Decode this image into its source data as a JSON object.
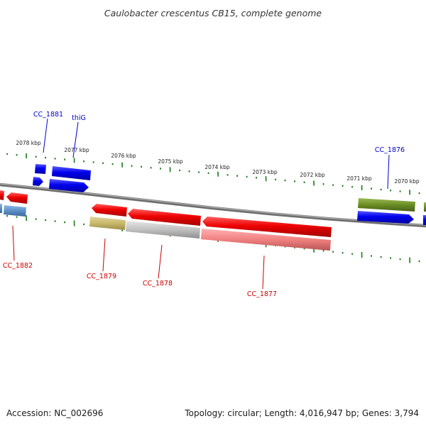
{
  "title": "Caulobacter crescentus CB15, complete genome",
  "footer": {
    "accession": "Accession: NC_002696",
    "summary": "Topology: circular; Length: 4,016,947 bp; Genes: 3,794"
  },
  "scale": {
    "unit": "kbp",
    "labels": [
      "2078 kbp",
      "2077 kbp",
      "2076 kbp",
      "2075 kbp",
      "2074 kbp",
      "2073 kbp",
      "2072 kbp",
      "2071 kbp",
      "2070 kbp"
    ]
  },
  "gene_labels": {
    "forward": [
      "CC_1881",
      "thiG",
      "CC_1876"
    ],
    "reverse": [
      "CC_1882",
      "CC_1879",
      "CC_1878",
      "CC_1877"
    ]
  },
  "colors": {
    "backbone": "#8a8a8a",
    "forward_gene": "#0000ee",
    "reverse_gene": "#ee0000",
    "forward_label": "#0000cc",
    "reverse_label": "#cc0000",
    "tick": "#1a7a1a",
    "cc1876_feature": "#6b8e23",
    "cc1879_feature": "#c8b86a",
    "cc1878_feature": "#c0c0c0",
    "cc1877_feature": "#f08080",
    "cc1882_feature": "#5b8fc7"
  }
}
